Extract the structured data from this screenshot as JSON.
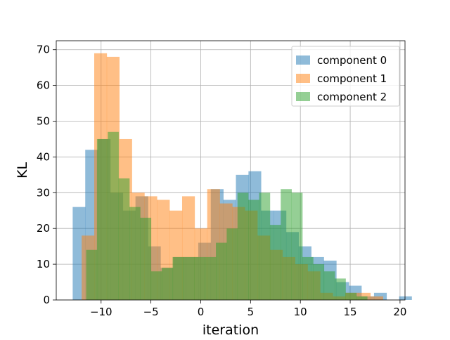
{
  "chart_data": {
    "type": "bar",
    "histogram": true,
    "xlabel": "iteration",
    "ylabel": "KL",
    "xlim": [
      -14.5,
      20.5
    ],
    "ylim": [
      0,
      72.5
    ],
    "xticks": [
      -10,
      -5,
      0,
      5,
      10,
      15,
      20
    ],
    "xtick_labels": [
      "−10",
      "−5",
      "0",
      "5",
      "10",
      "15",
      "20"
    ],
    "yticks": [
      0,
      10,
      20,
      30,
      40,
      50,
      60,
      70
    ],
    "grid": true,
    "legend_position": "top-right",
    "series": [
      {
        "name": "component 0",
        "color": "#1f77b4",
        "bin_start": -12.85,
        "bin_width": 1.26,
        "values": [
          26,
          42,
          45,
          30,
          25,
          29,
          15,
          9,
          12,
          12,
          16,
          31,
          28,
          35,
          36,
          25,
          25,
          19,
          15,
          12,
          11,
          5,
          4,
          1,
          2,
          0,
          1
        ]
      },
      {
        "name": "component 1",
        "color": "#ff7f0e",
        "bin_start": -11.95,
        "bin_width": 1.26,
        "values": [
          18,
          69,
          68,
          45,
          30,
          29,
          28,
          25,
          29,
          20,
          31,
          27,
          26,
          25,
          18,
          14,
          12,
          10,
          8,
          2,
          1,
          2,
          2,
          1
        ]
      },
      {
        "name": "component 2",
        "color": "#2ca02c",
        "bin_start": -11.5,
        "bin_width": 1.085,
        "values": [
          14,
          45,
          47,
          34,
          26,
          23,
          8,
          9,
          12,
          12,
          12,
          12,
          16,
          20,
          30,
          28,
          30,
          21,
          31,
          30,
          12,
          10,
          8,
          6,
          2,
          1
        ]
      }
    ]
  }
}
